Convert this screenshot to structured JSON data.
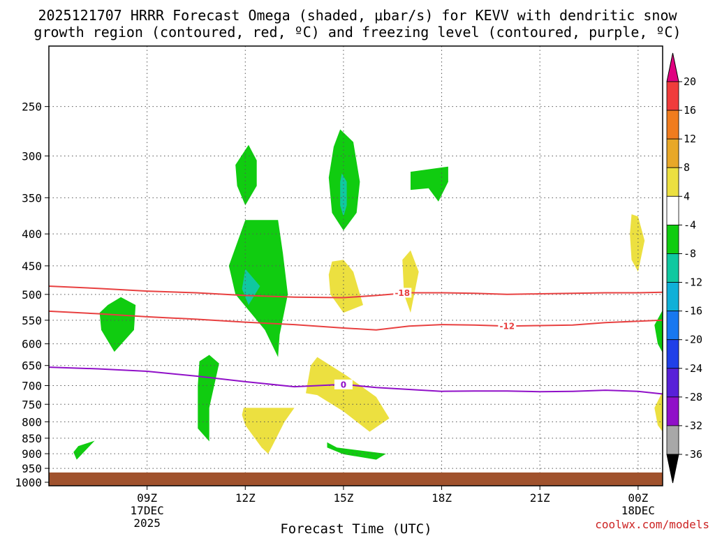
{
  "title": {
    "line1": "2025121707 HRRR Forecast Omega (shaded, μbar/s) for KEVV with dendritic snow",
    "line2": "growth region (contoured, red, ºC) and freezing level (contoured, purple, ºC)"
  },
  "credit": "coolwx.com/models",
  "chart_data": {
    "type": "heatmap",
    "xlabel": "Forecast Time (UTC)",
    "ylabel": "",
    "x_range_hours": [
      6.0,
      24.75
    ],
    "y_scale": "log-pressure",
    "y_range_mb": [
      200,
      1013
    ],
    "grid": "dotted",
    "x_ticks": [
      {
        "hour": 9,
        "label": "09Z",
        "sub1": "17DEC",
        "sub2": "2025"
      },
      {
        "hour": 12,
        "label": "12Z",
        "sub1": "",
        "sub2": ""
      },
      {
        "hour": 15,
        "label": "15Z",
        "sub1": "",
        "sub2": ""
      },
      {
        "hour": 18,
        "label": "18Z",
        "sub1": "",
        "sub2": ""
      },
      {
        "hour": 21,
        "label": "21Z",
        "sub1": "",
        "sub2": ""
      },
      {
        "hour": 24,
        "label": "00Z",
        "sub1": "18DEC",
        "sub2": ""
      }
    ],
    "y_ticks": [
      250,
      300,
      350,
      400,
      450,
      500,
      550,
      600,
      650,
      700,
      750,
      800,
      850,
      900,
      950,
      1000
    ],
    "colorbar": {
      "labels": [
        "20",
        "16",
        "12",
        "8",
        "4",
        "-4",
        "-8",
        "-12",
        "-16",
        "-20",
        "-24",
        "-28",
        "-32",
        "-36"
      ],
      "colors": [
        "#f03c3c",
        "#f07c1e",
        "#e8a828",
        "#ece040",
        "#ffffff",
        "#10cc10",
        "#10c8a0",
        "#10b0d8",
        "#1878f0",
        "#2040e8",
        "#5820d8",
        "#9010c8",
        "#a8a8a8"
      ],
      "top_arrow_color": "#e00080",
      "bottom_arrow_color": "#000000"
    },
    "contours": [
      {
        "value": "-18",
        "color": "#e84040",
        "points": [
          [
            6.0,
            485
          ],
          [
            7.5,
            489
          ],
          [
            9,
            494
          ],
          [
            10.5,
            497
          ],
          [
            12,
            502
          ],
          [
            13.5,
            505
          ],
          [
            15,
            506
          ],
          [
            16,
            502
          ],
          [
            17,
            497
          ],
          [
            18,
            497
          ],
          [
            19,
            498
          ],
          [
            20,
            500
          ],
          [
            21,
            499
          ],
          [
            22,
            498
          ],
          [
            23,
            497
          ],
          [
            24,
            497
          ],
          [
            24.75,
            496
          ]
        ],
        "label_at": [
          16.8,
          497
        ]
      },
      {
        "value": "-12",
        "color": "#e84040",
        "points": [
          [
            6.0,
            532
          ],
          [
            7.5,
            537
          ],
          [
            9,
            543
          ],
          [
            10.5,
            548
          ],
          [
            12,
            554
          ],
          [
            13.5,
            559
          ],
          [
            15,
            566
          ],
          [
            16,
            570
          ],
          [
            17,
            562
          ],
          [
            18,
            559
          ],
          [
            19,
            560
          ],
          [
            20,
            562
          ],
          [
            21,
            561
          ],
          [
            22,
            560
          ],
          [
            23,
            555
          ],
          [
            24,
            552
          ],
          [
            24.75,
            550
          ]
        ],
        "label_at": [
          20.0,
          562
        ]
      },
      {
        "value": "0",
        "color": "#9010c8",
        "points": [
          [
            6.0,
            654
          ],
          [
            7.5,
            658
          ],
          [
            9,
            664
          ],
          [
            10.5,
            676
          ],
          [
            12,
            690
          ],
          [
            13.5,
            703
          ],
          [
            15,
            697
          ],
          [
            16,
            705
          ],
          [
            17,
            710
          ],
          [
            18,
            715
          ],
          [
            19,
            714
          ],
          [
            20,
            714
          ],
          [
            21,
            716
          ],
          [
            22,
            715
          ],
          [
            23,
            712
          ],
          [
            24,
            715
          ],
          [
            24.75,
            722
          ]
        ],
        "label_at": [
          15.0,
          697
        ]
      }
    ],
    "omega_regions": [
      {
        "value_class": "-4",
        "color": "#10cc10",
        "points": [
          [
            11.7,
            310
          ],
          [
            12.1,
            288
          ],
          [
            12.35,
            305
          ],
          [
            12.35,
            335
          ],
          [
            12.0,
            360
          ],
          [
            11.75,
            335
          ]
        ]
      },
      {
        "value_class": "-4",
        "color": "#10cc10",
        "points": [
          [
            14.9,
            272
          ],
          [
            15.3,
            285
          ],
          [
            15.5,
            330
          ],
          [
            15.4,
            370
          ],
          [
            15.0,
            395
          ],
          [
            14.65,
            370
          ],
          [
            14.55,
            325
          ],
          [
            14.7,
            290
          ]
        ]
      },
      {
        "value_class": "-8",
        "color": "#10c8a0",
        "points": [
          [
            14.95,
            320
          ],
          [
            15.1,
            330
          ],
          [
            15.1,
            360
          ],
          [
            15.0,
            375
          ],
          [
            14.9,
            360
          ],
          [
            14.9,
            330
          ]
        ]
      },
      {
        "value_class": "-4",
        "color": "#10cc10",
        "points": [
          [
            17.05,
            318
          ],
          [
            18.2,
            312
          ],
          [
            18.2,
            330
          ],
          [
            17.9,
            355
          ],
          [
            17.6,
            338
          ],
          [
            17.05,
            340
          ]
        ]
      },
      {
        "value_class": "-4",
        "color": "#10cc10",
        "points": [
          [
            12.0,
            380
          ],
          [
            13.0,
            380
          ],
          [
            13.15,
            430
          ],
          [
            13.3,
            500
          ],
          [
            13.05,
            580
          ],
          [
            13.0,
            630
          ],
          [
            12.6,
            570
          ],
          [
            11.7,
            500
          ],
          [
            11.5,
            450
          ]
        ]
      },
      {
        "value_class": "-8",
        "color": "#10c8a0",
        "points": [
          [
            12.0,
            455
          ],
          [
            12.45,
            485
          ],
          [
            12.1,
            520
          ],
          [
            11.9,
            490
          ]
        ]
      },
      {
        "value_class": "-4",
        "color": "#10cc10",
        "points": [
          [
            7.8,
            520
          ],
          [
            8.2,
            505
          ],
          [
            8.65,
            520
          ],
          [
            8.6,
            570
          ],
          [
            8.0,
            618
          ],
          [
            7.6,
            570
          ],
          [
            7.55,
            535
          ]
        ]
      },
      {
        "value_class": "-4",
        "color": "#10cc10",
        "points": [
          [
            10.6,
            640
          ],
          [
            10.9,
            625
          ],
          [
            11.2,
            645
          ],
          [
            10.9,
            760
          ],
          [
            10.9,
            860
          ],
          [
            10.55,
            820
          ],
          [
            10.55,
            700
          ]
        ]
      },
      {
        "value_class": "-4",
        "color": "#10cc10",
        "points": [
          [
            6.9,
            875
          ],
          [
            7.4,
            858
          ],
          [
            7.2,
            880
          ],
          [
            6.85,
            920
          ],
          [
            6.75,
            895
          ]
        ]
      },
      {
        "value_class": "-4",
        "color": "#10cc10",
        "points": [
          [
            14.5,
            863
          ],
          [
            14.8,
            880
          ],
          [
            16.3,
            900
          ],
          [
            16.0,
            920
          ],
          [
            15.0,
            902
          ],
          [
            14.5,
            880
          ]
        ]
      },
      {
        "value_class": "-4",
        "color": "#10cc10",
        "points": [
          [
            24.75,
            530
          ],
          [
            24.5,
            560
          ],
          [
            24.6,
            600
          ],
          [
            24.75,
            620
          ]
        ]
      },
      {
        "value_class": "4",
        "color": "#ece040",
        "points": [
          [
            14.65,
            443
          ],
          [
            15.0,
            440
          ],
          [
            15.3,
            460
          ],
          [
            15.6,
            520
          ],
          [
            15.0,
            535
          ],
          [
            14.6,
            500
          ],
          [
            14.55,
            465
          ]
        ]
      },
      {
        "value_class": "4",
        "color": "#ece040",
        "points": [
          [
            16.8,
            440
          ],
          [
            17.05,
            425
          ],
          [
            17.3,
            460
          ],
          [
            17.05,
            535
          ],
          [
            16.85,
            500
          ]
        ]
      },
      {
        "value_class": "4",
        "color": "#ece040",
        "points": [
          [
            23.8,
            372
          ],
          [
            24.0,
            375
          ],
          [
            24.2,
            410
          ],
          [
            24.0,
            460
          ],
          [
            23.8,
            440
          ],
          [
            23.75,
            400
          ]
        ]
      },
      {
        "value_class": "4",
        "color": "#ece040",
        "points": [
          [
            14.0,
            650
          ],
          [
            14.2,
            630
          ],
          [
            15.1,
            675
          ],
          [
            16.0,
            730
          ],
          [
            16.4,
            790
          ],
          [
            15.8,
            830
          ],
          [
            15.0,
            770
          ],
          [
            14.2,
            725
          ],
          [
            13.85,
            720
          ]
        ]
      },
      {
        "value_class": "4",
        "color": "#ece040",
        "points": [
          [
            11.95,
            760
          ],
          [
            13.5,
            760
          ],
          [
            13.2,
            800
          ],
          [
            12.8,
            880
          ],
          [
            12.7,
            900
          ],
          [
            12.5,
            880
          ],
          [
            12.0,
            810
          ],
          [
            11.9,
            780
          ]
        ]
      },
      {
        "value_class": "4",
        "color": "#ece040",
        "points": [
          [
            24.75,
            715
          ],
          [
            24.5,
            760
          ],
          [
            24.6,
            810
          ],
          [
            24.75,
            830
          ]
        ]
      }
    ]
  }
}
